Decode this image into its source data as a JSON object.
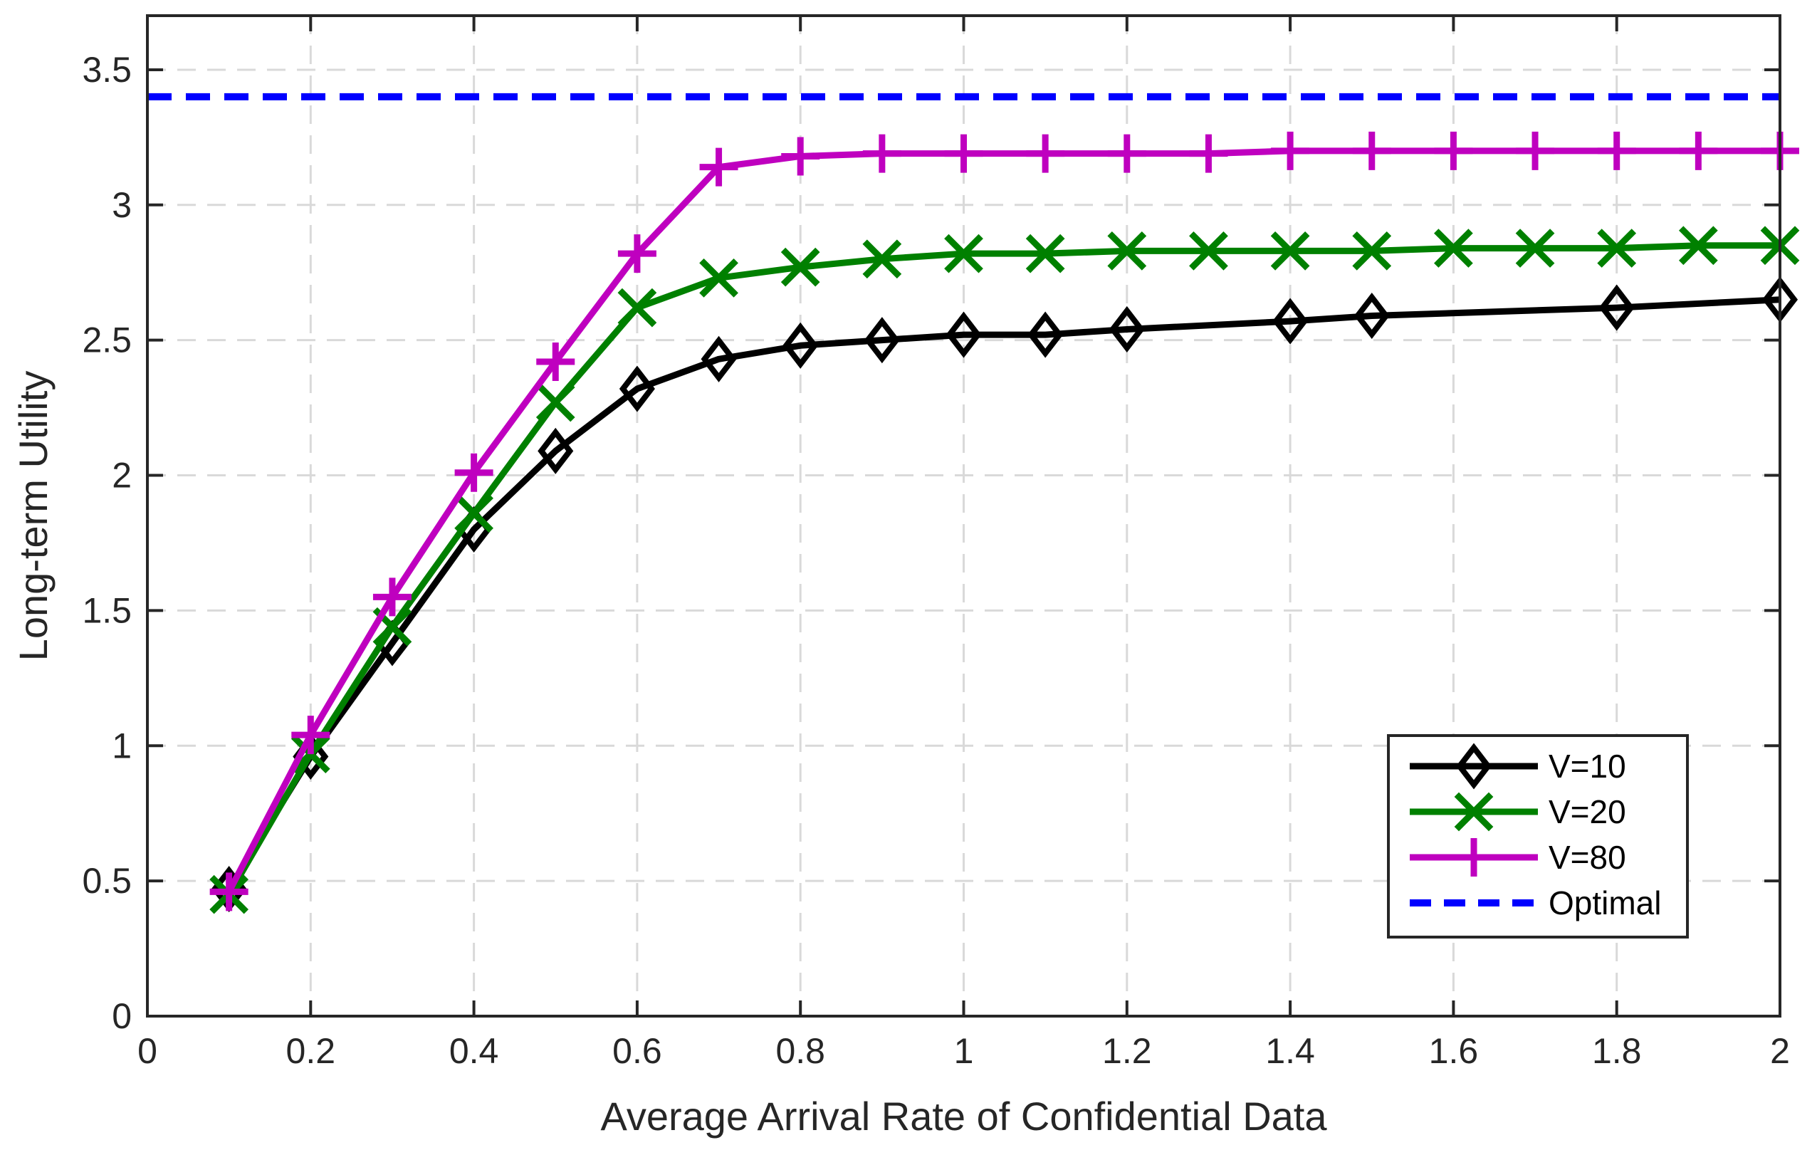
{
  "chart_data": {
    "type": "line",
    "title": "",
    "xlabel": "Average Arrival Rate of Confidential Data",
    "ylabel": "Long-term Utility",
    "xlim": [
      0,
      2
    ],
    "ylim": [
      0,
      3.7
    ],
    "xticks": [
      0,
      0.2,
      0.4,
      0.6,
      0.8,
      1,
      1.2,
      1.4,
      1.6,
      1.8,
      2
    ],
    "xtick_labels": [
      "0",
      "0.2",
      "0.4",
      "0.6",
      "0.8",
      "1",
      "1.2",
      "1.4",
      "1.6",
      "1.8",
      "2"
    ],
    "yticks": [
      0,
      0.5,
      1,
      1.5,
      2,
      2.5,
      3,
      3.5
    ],
    "ytick_labels": [
      "0",
      "0.5",
      "1",
      "1.5",
      "2",
      "2.5",
      "3",
      "3.5"
    ],
    "grid": true,
    "legend_position": "bottom-right",
    "series": [
      {
        "name": "V=10",
        "color": "#000000",
        "marker": "diamond",
        "line": "solid",
        "x": [
          0.1,
          0.2,
          0.3,
          0.4,
          0.5,
          0.6,
          0.7,
          0.8,
          0.9,
          1.0,
          1.1,
          1.2,
          1.4,
          1.5,
          1.8,
          2.0
        ],
        "values": [
          0.47,
          0.96,
          1.38,
          1.8,
          2.09,
          2.32,
          2.43,
          2.48,
          2.5,
          2.52,
          2.52,
          2.54,
          2.57,
          2.59,
          2.62,
          2.65
        ]
      },
      {
        "name": "V=20",
        "color": "#008000",
        "marker": "x",
        "line": "solid",
        "x": [
          0.1,
          0.2,
          0.3,
          0.4,
          0.5,
          0.6,
          0.7,
          0.8,
          0.9,
          1.0,
          1.1,
          1.2,
          1.3,
          1.4,
          1.5,
          1.6,
          1.7,
          1.8,
          1.9,
          2.0
        ],
        "values": [
          0.45,
          0.97,
          1.44,
          1.86,
          2.27,
          2.62,
          2.73,
          2.77,
          2.8,
          2.82,
          2.82,
          2.83,
          2.83,
          2.83,
          2.83,
          2.84,
          2.84,
          2.84,
          2.85,
          2.85
        ]
      },
      {
        "name": "V=80",
        "color": "#bf00bf",
        "marker": "plus",
        "line": "solid",
        "x": [
          0.1,
          0.2,
          0.3,
          0.4,
          0.5,
          0.6,
          0.7,
          0.8,
          0.9,
          1.0,
          1.1,
          1.2,
          1.3,
          1.4,
          1.5,
          1.6,
          1.7,
          1.8,
          1.9,
          2.0
        ],
        "values": [
          0.46,
          1.04,
          1.55,
          2.01,
          2.42,
          2.82,
          3.14,
          3.18,
          3.19,
          3.19,
          3.19,
          3.19,
          3.19,
          3.2,
          3.2,
          3.2,
          3.2,
          3.2,
          3.2,
          3.2
        ]
      },
      {
        "name": "Optimal",
        "color": "#0000ff",
        "marker": "none",
        "line": "dashed",
        "x": [
          0,
          2
        ],
        "values": [
          3.4,
          3.4
        ]
      }
    ]
  }
}
